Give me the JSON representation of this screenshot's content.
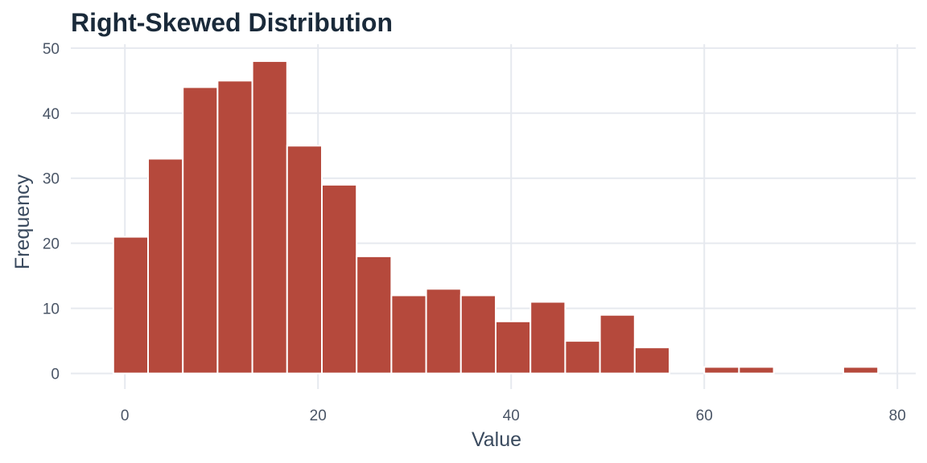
{
  "chart_data": {
    "type": "bar",
    "title": "Right-Skewed Distribution",
    "xlabel": "Value",
    "ylabel": "Frequency",
    "xlim": [
      -5.6,
      81.9
    ],
    "ylim": [
      -2.4,
      50.6
    ],
    "x_ticks": [
      0,
      20,
      40,
      60,
      80
    ],
    "y_ticks": [
      0,
      10,
      20,
      30,
      40,
      50
    ],
    "grid": true,
    "bar_color": "#b5493c",
    "bin_width": 3.6,
    "bins": [
      {
        "x": 0.6,
        "count": 21
      },
      {
        "x": 4.2,
        "count": 33
      },
      {
        "x": 7.8,
        "count": 44
      },
      {
        "x": 11.4,
        "count": 45
      },
      {
        "x": 15.0,
        "count": 48
      },
      {
        "x": 18.6,
        "count": 35
      },
      {
        "x": 22.2,
        "count": 29
      },
      {
        "x": 25.8,
        "count": 18
      },
      {
        "x": 29.4,
        "count": 12
      },
      {
        "x": 33.0,
        "count": 13
      },
      {
        "x": 36.6,
        "count": 12
      },
      {
        "x": 40.2,
        "count": 8
      },
      {
        "x": 43.8,
        "count": 11
      },
      {
        "x": 47.4,
        "count": 5
      },
      {
        "x": 51.0,
        "count": 9
      },
      {
        "x": 54.6,
        "count": 4
      },
      {
        "x": 58.2,
        "count": 0
      },
      {
        "x": 61.8,
        "count": 1
      },
      {
        "x": 65.4,
        "count": 1
      },
      {
        "x": 69.0,
        "count": 0
      },
      {
        "x": 72.6,
        "count": 0
      },
      {
        "x": 76.2,
        "count": 1
      }
    ]
  }
}
